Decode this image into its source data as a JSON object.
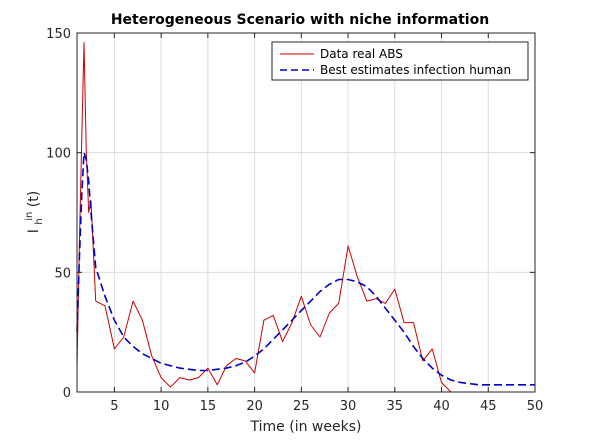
{
  "chart_data": {
    "type": "line",
    "title": "Heterogeneous Scenario with niche information",
    "xlabel": "Time (in weeks)",
    "ylabel": {
      "base": "I",
      "sub": "h",
      "sup": "in",
      "suffix": "(t)"
    },
    "xlim": [
      1,
      50
    ],
    "ylim": [
      0,
      150
    ],
    "xticks": [
      5,
      10,
      15,
      20,
      25,
      30,
      35,
      40,
      45,
      50
    ],
    "yticks": [
      0,
      50,
      100,
      150
    ],
    "grid": true,
    "legend_position": "top-right",
    "series": [
      {
        "name": "Data real ABS",
        "color": "#cc0000",
        "style": "solid",
        "x": [
          1,
          1.25,
          1.5,
          1.75,
          2,
          2.25,
          2.5,
          3,
          4,
          5,
          6,
          7,
          8,
          9,
          10,
          11,
          12,
          13,
          14,
          15,
          16,
          17,
          18,
          19,
          20,
          21,
          22,
          23,
          24,
          25,
          26,
          27,
          28,
          29,
          30,
          31,
          32,
          33,
          34,
          35,
          36,
          37,
          38,
          39,
          40,
          41,
          42,
          43,
          44,
          45,
          46,
          47,
          48,
          49,
          50
        ],
        "y": [
          10,
          60,
          105,
          146,
          100,
          75,
          80,
          38,
          36,
          18,
          23,
          38,
          30,
          15,
          6,
          2,
          6,
          5,
          6,
          10,
          3,
          11,
          14,
          13,
          8,
          30,
          32,
          21,
          29,
          40,
          28,
          23,
          33,
          37,
          61,
          48,
          38,
          39,
          37,
          43,
          29,
          29,
          13,
          18,
          4,
          0,
          0,
          0,
          0,
          0,
          0,
          0,
          0,
          0,
          0
        ]
      },
      {
        "name": "Best estimates infection human",
        "color": "#0000cc",
        "style": "dashed",
        "x": [
          1,
          1.25,
          1.5,
          1.75,
          2,
          2.25,
          2.5,
          3,
          3.5,
          4,
          5,
          6,
          7,
          8,
          9,
          10,
          11,
          12,
          13,
          14,
          15,
          16,
          17,
          18,
          19,
          20,
          21,
          22,
          23,
          24,
          25,
          26,
          27,
          28,
          29,
          30,
          31,
          32,
          33,
          34,
          35,
          36,
          37,
          38,
          39,
          40,
          41,
          42,
          43,
          44,
          45,
          46,
          47,
          48,
          49,
          50
        ],
        "y": [
          25,
          55,
          82,
          100,
          97,
          88,
          75,
          52,
          46,
          40,
          30,
          23,
          19,
          16,
          14,
          12,
          11,
          10,
          9.5,
          9,
          9,
          9.5,
          10,
          11,
          12.5,
          15,
          18,
          22,
          26,
          30,
          34,
          38,
          42,
          45,
          47,
          47,
          46,
          44,
          40,
          35,
          30,
          25,
          19,
          14,
          10,
          7,
          5,
          4,
          3.5,
          3,
          3,
          3,
          3,
          3,
          3,
          3
        ]
      }
    ]
  }
}
